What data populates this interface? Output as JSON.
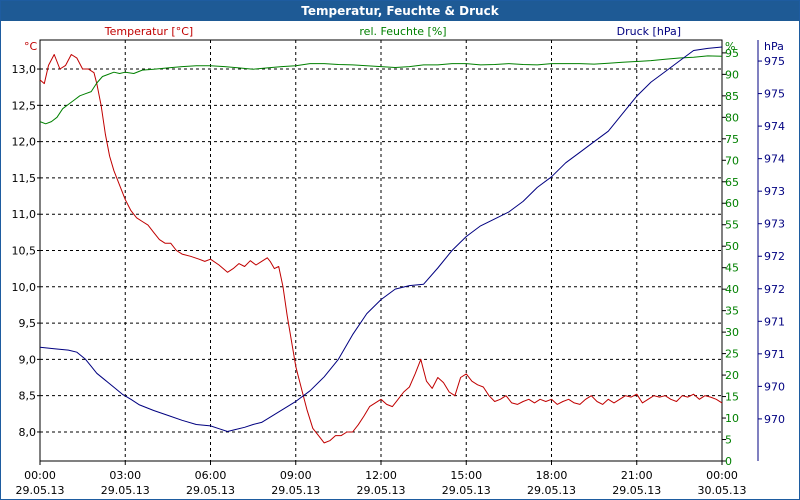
{
  "window": {
    "title": "Temperatur, Feuchte & Druck"
  },
  "chart_data": {
    "type": "line",
    "title": "Temperatur, Feuchte & Druck",
    "x_axis": {
      "range_hours": [
        0,
        24
      ],
      "tick_hours": [
        0,
        3,
        6,
        9,
        12,
        15,
        18,
        21,
        24
      ],
      "tick_times": [
        "00:00",
        "03:00",
        "06:00",
        "09:00",
        "12:00",
        "15:00",
        "18:00",
        "21:00",
        "00:00"
      ],
      "tick_dates": [
        "29.05.13",
        "29.05.13",
        "29.05.13",
        "29.05.13",
        "29.05.13",
        "29.05.13",
        "29.05.13",
        "29.05.13",
        "30.05.13"
      ]
    },
    "axes": {
      "temperature": {
        "unit": "°C",
        "label": "Temperatur [°C]",
        "color": "#c00000",
        "range": [
          7.6,
          13.4
        ],
        "ticks": [
          "8,0",
          "8,5",
          "9,0",
          "9,5",
          "10,0",
          "10,5",
          "11,0",
          "11,5",
          "12,0",
          "12,5",
          "13,0"
        ]
      },
      "humidity": {
        "unit": "%",
        "label": "rel. Feuchte [%]",
        "color": "#008000",
        "range": [
          0,
          98
        ],
        "ticks": [
          "0",
          "5",
          "10",
          "15",
          "20",
          "25",
          "30",
          "35",
          "40",
          "45",
          "50",
          "55",
          "60",
          "65",
          "70",
          "75",
          "80",
          "85",
          "90",
          "95"
        ]
      },
      "pressure": {
        "unit": "hPa",
        "label": "Druck [hPa]",
        "color": "#000080",
        "range": [
          969.4,
          975.4
        ],
        "ticks": [
          "970",
          "970",
          "971",
          "971",
          "972",
          "972",
          "973",
          "973",
          "974",
          "974",
          "975",
          "975"
        ]
      }
    },
    "series": [
      {
        "name": "Temperatur",
        "axis": "temperature",
        "color": "#c00000",
        "points": [
          [
            0,
            12.85
          ],
          [
            0.15,
            12.8
          ],
          [
            0.3,
            13.05
          ],
          [
            0.5,
            13.2
          ],
          [
            0.7,
            13.0
          ],
          [
            0.9,
            13.05
          ],
          [
            1.1,
            13.2
          ],
          [
            1.3,
            13.15
          ],
          [
            1.5,
            13.0
          ],
          [
            1.7,
            13.0
          ],
          [
            1.9,
            12.95
          ],
          [
            2.0,
            12.8
          ],
          [
            2.15,
            12.5
          ],
          [
            2.3,
            12.1
          ],
          [
            2.45,
            11.8
          ],
          [
            2.6,
            11.6
          ],
          [
            2.8,
            11.4
          ],
          [
            3.0,
            11.2
          ],
          [
            3.2,
            11.05
          ],
          [
            3.4,
            10.95
          ],
          [
            3.6,
            10.9
          ],
          [
            3.8,
            10.85
          ],
          [
            4.0,
            10.75
          ],
          [
            4.2,
            10.65
          ],
          [
            4.4,
            10.6
          ],
          [
            4.6,
            10.6
          ],
          [
            4.8,
            10.5
          ],
          [
            5.0,
            10.45
          ],
          [
            5.3,
            10.42
          ],
          [
            5.6,
            10.38
          ],
          [
            5.8,
            10.35
          ],
          [
            6.0,
            10.38
          ],
          [
            6.3,
            10.3
          ],
          [
            6.6,
            10.2
          ],
          [
            6.8,
            10.25
          ],
          [
            7.0,
            10.32
          ],
          [
            7.2,
            10.28
          ],
          [
            7.4,
            10.36
          ],
          [
            7.6,
            10.3
          ],
          [
            7.8,
            10.35
          ],
          [
            8.0,
            10.4
          ],
          [
            8.1,
            10.35
          ],
          [
            8.25,
            10.25
          ],
          [
            8.4,
            10.28
          ],
          [
            8.55,
            10.0
          ],
          [
            8.7,
            9.6
          ],
          [
            8.85,
            9.25
          ],
          [
            9.0,
            8.9
          ],
          [
            9.2,
            8.6
          ],
          [
            9.4,
            8.3
          ],
          [
            9.6,
            8.05
          ],
          [
            9.8,
            7.95
          ],
          [
            10.0,
            7.85
          ],
          [
            10.2,
            7.88
          ],
          [
            10.4,
            7.95
          ],
          [
            10.6,
            7.95
          ],
          [
            10.8,
            8.0
          ],
          [
            11.0,
            8.0
          ],
          [
            11.2,
            8.1
          ],
          [
            11.4,
            8.22
          ],
          [
            11.6,
            8.35
          ],
          [
            11.8,
            8.4
          ],
          [
            12.0,
            8.45
          ],
          [
            12.2,
            8.38
          ],
          [
            12.4,
            8.35
          ],
          [
            12.6,
            8.45
          ],
          [
            12.8,
            8.55
          ],
          [
            13.0,
            8.62
          ],
          [
            13.2,
            8.8
          ],
          [
            13.4,
            9.0
          ],
          [
            13.5,
            8.85
          ],
          [
            13.6,
            8.7
          ],
          [
            13.8,
            8.6
          ],
          [
            14.0,
            8.75
          ],
          [
            14.2,
            8.68
          ],
          [
            14.4,
            8.55
          ],
          [
            14.6,
            8.5
          ],
          [
            14.8,
            8.75
          ],
          [
            15.0,
            8.8
          ],
          [
            15.2,
            8.7
          ],
          [
            15.4,
            8.65
          ],
          [
            15.6,
            8.62
          ],
          [
            15.8,
            8.5
          ],
          [
            16.0,
            8.42
          ],
          [
            16.2,
            8.45
          ],
          [
            16.4,
            8.5
          ],
          [
            16.6,
            8.4
          ],
          [
            16.8,
            8.38
          ],
          [
            17.0,
            8.42
          ],
          [
            17.2,
            8.45
          ],
          [
            17.4,
            8.4
          ],
          [
            17.6,
            8.45
          ],
          [
            17.8,
            8.42
          ],
          [
            18.0,
            8.45
          ],
          [
            18.2,
            8.38
          ],
          [
            18.4,
            8.42
          ],
          [
            18.6,
            8.45
          ],
          [
            18.8,
            8.4
          ],
          [
            19.0,
            8.38
          ],
          [
            19.2,
            8.45
          ],
          [
            19.4,
            8.5
          ],
          [
            19.6,
            8.42
          ],
          [
            19.8,
            8.38
          ],
          [
            20.0,
            8.45
          ],
          [
            20.2,
            8.4
          ],
          [
            20.4,
            8.45
          ],
          [
            20.6,
            8.5
          ],
          [
            20.8,
            8.48
          ],
          [
            21.0,
            8.52
          ],
          [
            21.2,
            8.4
          ],
          [
            21.4,
            8.45
          ],
          [
            21.6,
            8.5
          ],
          [
            21.8,
            8.48
          ],
          [
            22.0,
            8.5
          ],
          [
            22.2,
            8.45
          ],
          [
            22.4,
            8.42
          ],
          [
            22.6,
            8.5
          ],
          [
            22.8,
            8.48
          ],
          [
            23.0,
            8.52
          ],
          [
            23.2,
            8.45
          ],
          [
            23.4,
            8.5
          ],
          [
            23.6,
            8.48
          ],
          [
            23.8,
            8.45
          ],
          [
            24.0,
            8.4
          ]
        ]
      },
      {
        "name": "rel. Feuchte",
        "axis": "humidity",
        "color": "#008000",
        "points": [
          [
            0,
            79
          ],
          [
            0.2,
            78.5
          ],
          [
            0.4,
            79
          ],
          [
            0.6,
            80
          ],
          [
            0.8,
            82
          ],
          [
            1.0,
            83
          ],
          [
            1.2,
            84
          ],
          [
            1.4,
            85
          ],
          [
            1.6,
            85.5
          ],
          [
            1.8,
            86
          ],
          [
            2.0,
            88
          ],
          [
            2.2,
            89.5
          ],
          [
            2.4,
            90
          ],
          [
            2.6,
            90.5
          ],
          [
            2.8,
            90.2
          ],
          [
            3.0,
            90.5
          ],
          [
            3.3,
            90.2
          ],
          [
            3.6,
            91
          ],
          [
            4.0,
            91.2
          ],
          [
            4.5,
            91.5
          ],
          [
            5.0,
            91.8
          ],
          [
            5.5,
            92
          ],
          [
            6.0,
            92
          ],
          [
            6.5,
            91.8
          ],
          [
            7.0,
            91.5
          ],
          [
            7.5,
            91.2
          ],
          [
            8.0,
            91.5
          ],
          [
            8.5,
            91.8
          ],
          [
            9.0,
            92
          ],
          [
            9.5,
            92.5
          ],
          [
            10.0,
            92.5
          ],
          [
            10.5,
            92.3
          ],
          [
            11.0,
            92.2
          ],
          [
            11.5,
            92
          ],
          [
            12.0,
            91.8
          ],
          [
            12.5,
            91.6
          ],
          [
            13.0,
            91.8
          ],
          [
            13.5,
            92.2
          ],
          [
            14.0,
            92.2
          ],
          [
            14.5,
            92.5
          ],
          [
            15.0,
            92.5
          ],
          [
            15.5,
            92.2
          ],
          [
            16.0,
            92.3
          ],
          [
            16.5,
            92.5
          ],
          [
            17.0,
            92.3
          ],
          [
            17.5,
            92.2
          ],
          [
            18.0,
            92.5
          ],
          [
            18.5,
            92.5
          ],
          [
            19.0,
            92.5
          ],
          [
            19.5,
            92.4
          ],
          [
            20.0,
            92.6
          ],
          [
            20.5,
            92.8
          ],
          [
            21.0,
            93
          ],
          [
            21.5,
            93.2
          ],
          [
            22.0,
            93.5
          ],
          [
            22.5,
            93.8
          ],
          [
            23.0,
            94
          ],
          [
            23.5,
            94.3
          ],
          [
            24.0,
            94.2
          ]
        ]
      },
      {
        "name": "Druck",
        "axis": "pressure",
        "color": "#000080",
        "points": [
          [
            0,
            971.02
          ],
          [
            0.5,
            971.0
          ],
          [
            1.0,
            970.98
          ],
          [
            1.3,
            970.95
          ],
          [
            1.6,
            970.85
          ],
          [
            1.8,
            970.75
          ],
          [
            2.0,
            970.65
          ],
          [
            2.3,
            970.55
          ],
          [
            2.6,
            970.45
          ],
          [
            2.9,
            970.35
          ],
          [
            3.2,
            970.28
          ],
          [
            3.5,
            970.2
          ],
          [
            4.0,
            970.12
          ],
          [
            4.5,
            970.05
          ],
          [
            5.0,
            969.98
          ],
          [
            5.5,
            969.92
          ],
          [
            6.0,
            969.9
          ],
          [
            6.3,
            969.86
          ],
          [
            6.6,
            969.82
          ],
          [
            6.9,
            969.85
          ],
          [
            7.2,
            969.88
          ],
          [
            7.5,
            969.92
          ],
          [
            7.8,
            969.95
          ],
          [
            8.2,
            970.05
          ],
          [
            8.6,
            970.15
          ],
          [
            9.0,
            970.25
          ],
          [
            9.5,
            970.4
          ],
          [
            10.0,
            970.6
          ],
          [
            10.5,
            970.85
          ],
          [
            11.0,
            971.2
          ],
          [
            11.5,
            971.5
          ],
          [
            12.0,
            971.7
          ],
          [
            12.5,
            971.85
          ],
          [
            13.0,
            971.9
          ],
          [
            13.5,
            971.92
          ],
          [
            14.0,
            972.15
          ],
          [
            14.5,
            972.4
          ],
          [
            15.0,
            972.6
          ],
          [
            15.5,
            972.75
          ],
          [
            16.0,
            972.85
          ],
          [
            16.5,
            972.95
          ],
          [
            17.0,
            973.1
          ],
          [
            17.5,
            973.3
          ],
          [
            18.0,
            973.45
          ],
          [
            18.5,
            973.65
          ],
          [
            19.0,
            973.8
          ],
          [
            19.5,
            973.95
          ],
          [
            20.0,
            974.1
          ],
          [
            20.5,
            974.35
          ],
          [
            21.0,
            974.6
          ],
          [
            21.5,
            974.8
          ],
          [
            22.0,
            974.95
          ],
          [
            22.5,
            975.1
          ],
          [
            23.0,
            975.25
          ],
          [
            23.5,
            975.28
          ],
          [
            24.0,
            975.3
          ]
        ]
      }
    ]
  }
}
